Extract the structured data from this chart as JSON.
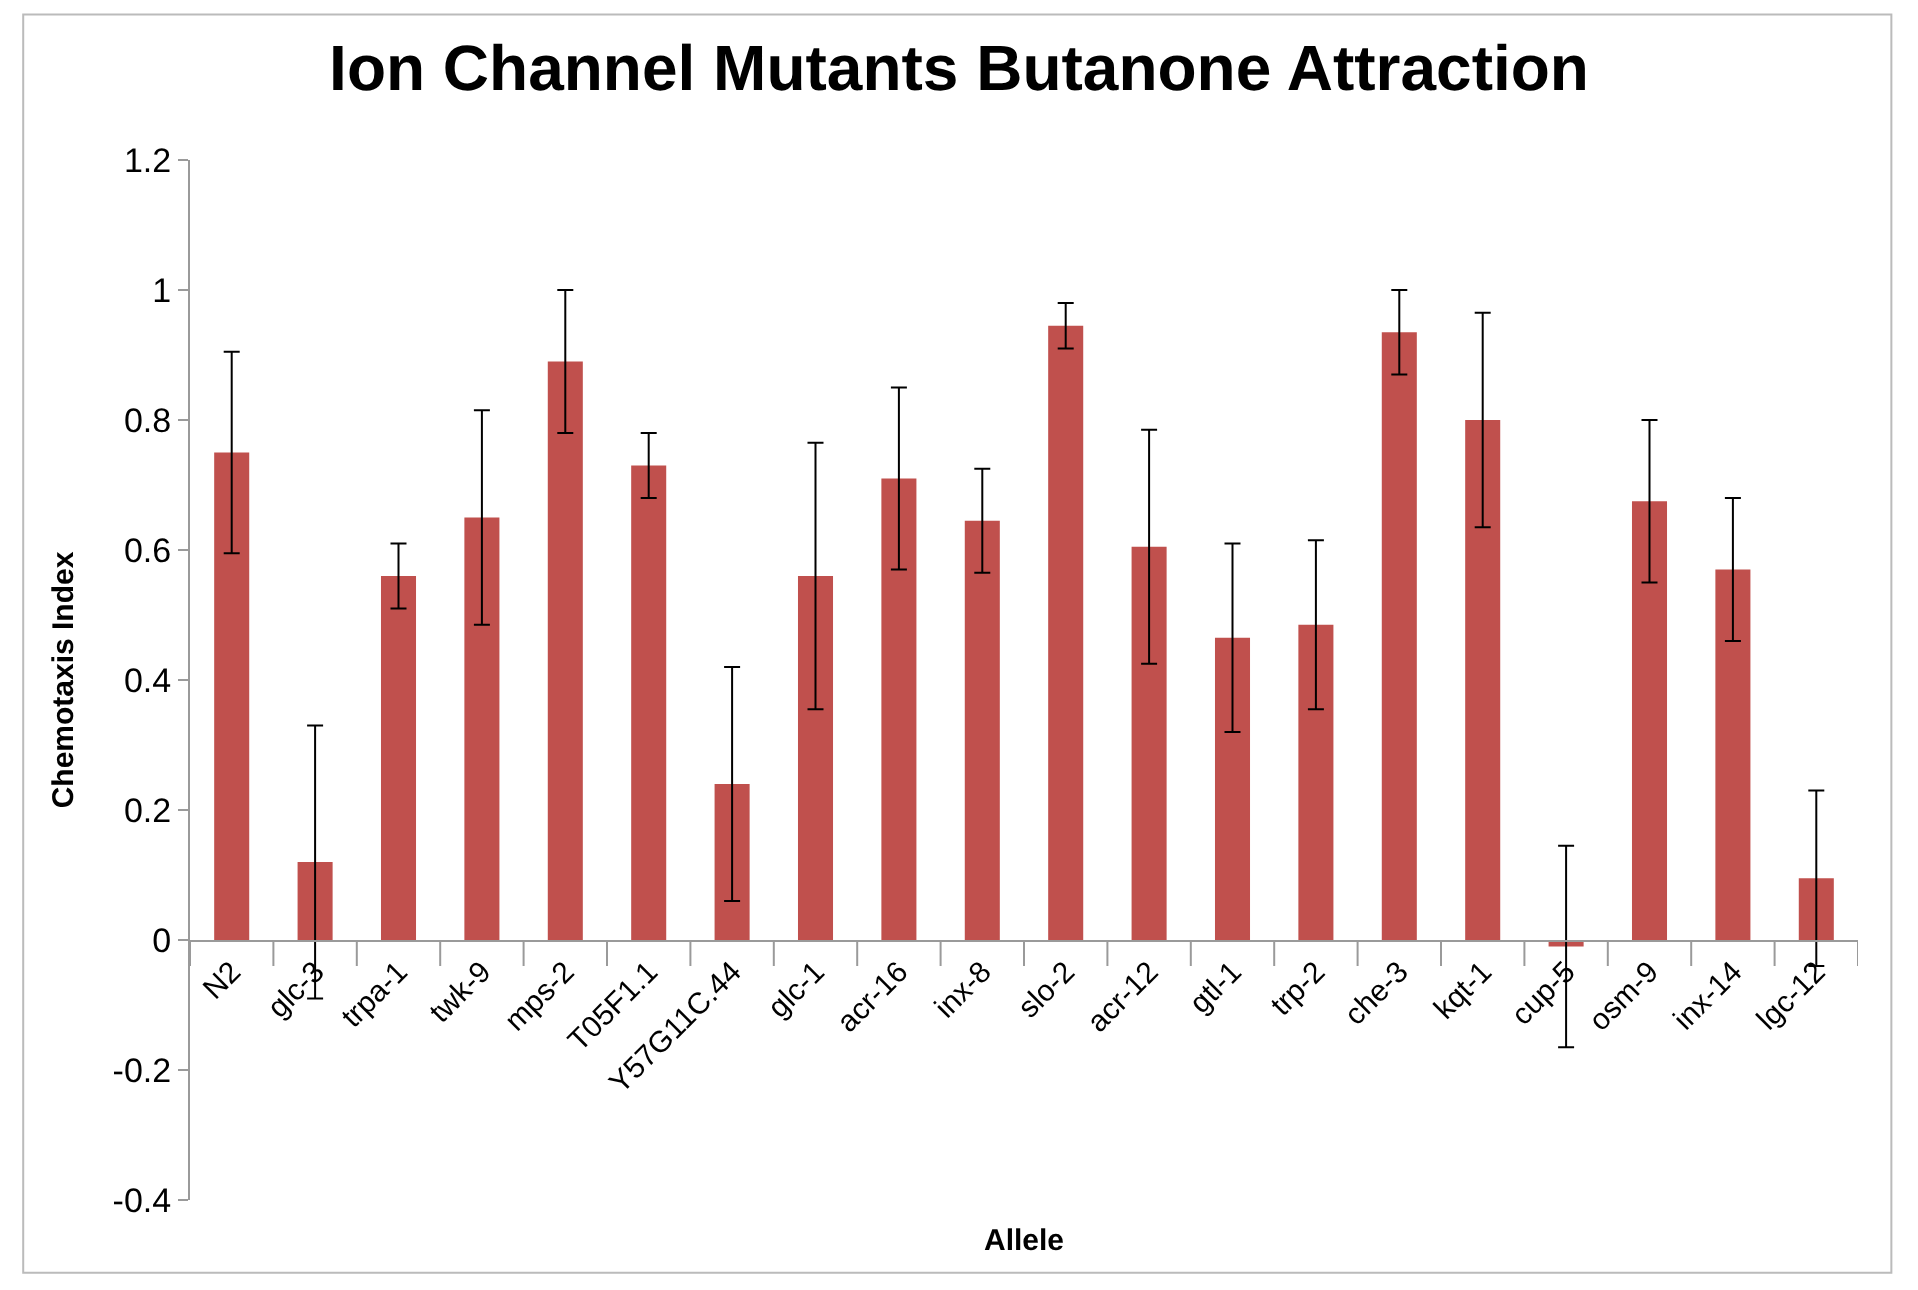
{
  "chart_data": {
    "type": "bar",
    "title": "Ion Channel Mutants Butanone Attraction",
    "xlabel": "Allele",
    "ylabel": "Chemotaxis Index",
    "categories": [
      "N2",
      "glc-3",
      "trpa-1",
      "twk-9",
      "mps-2",
      "T05F1.1",
      "Y57G11C.44",
      "glc-1",
      "acr-16",
      "inx-8",
      "slo-2",
      "acr-12",
      "gtl-1",
      "trp-2",
      "che-3",
      "kqt-1",
      "cup-5",
      "osm-9",
      "inx-14",
      "lgc-12"
    ],
    "values": [
      0.75,
      0.12,
      0.56,
      0.65,
      0.89,
      0.73,
      0.24,
      0.56,
      0.71,
      0.645,
      0.945,
      0.605,
      0.465,
      0.485,
      0.935,
      0.8,
      -0.01,
      0.675,
      0.57,
      0.095
    ],
    "errors": [
      0.155,
      0.21,
      0.05,
      0.165,
      0.11,
      0.05,
      0.18,
      0.205,
      0.14,
      0.08,
      0.035,
      0.18,
      0.145,
      0.13,
      0.065,
      0.165,
      0.155,
      0.125,
      0.11,
      0.135
    ],
    "color": "#c0504d",
    "yticks": [
      {
        "value": -0.4,
        "label": "-0.4"
      },
      {
        "value": -0.2,
        "label": "-0.2"
      },
      0,
      {
        "value": 0.2,
        "label": "0.2"
      },
      {
        "value": 0.4,
        "label": "0.4"
      },
      {
        "value": 0.6,
        "label": "0.6"
      },
      {
        "value": 0.8,
        "label": "0.8"
      },
      1,
      {
        "value": 1.2,
        "label": "1.2"
      }
    ],
    "ylim": [
      -0.4,
      1.2
    ]
  }
}
